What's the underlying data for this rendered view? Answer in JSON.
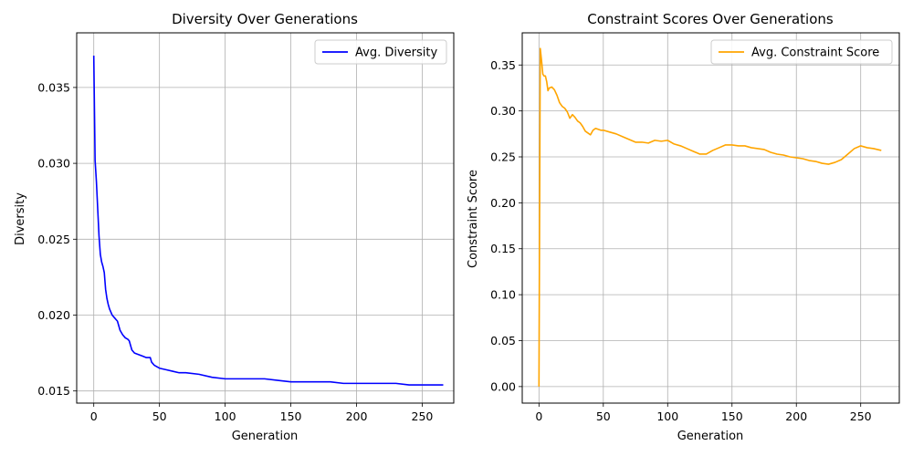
{
  "chart_data": [
    {
      "type": "line",
      "title": "Diversity Over Generations",
      "xlabel": "Generation",
      "ylabel": "Diversity",
      "xlim": [
        -13,
        274
      ],
      "ylim": [
        0.0142,
        0.0386
      ],
      "xticks": [
        0,
        50,
        100,
        150,
        200,
        250
      ],
      "yticks": [
        0.015,
        0.02,
        0.025,
        0.03,
        0.035
      ],
      "ytick_labels": [
        "0.015",
        "0.020",
        "0.025",
        "0.030",
        "0.035"
      ],
      "grid": true,
      "legend_position": "top-right",
      "series": [
        {
          "name": "Avg. Diversity",
          "color": "#0000ff",
          "x": [
            0,
            1,
            2,
            3,
            4,
            5,
            6,
            7,
            8,
            9,
            10,
            11,
            12,
            14,
            16,
            18,
            20,
            22,
            24,
            26,
            27,
            29,
            31,
            34,
            37,
            40,
            43,
            44,
            46,
            48,
            50,
            55,
            60,
            65,
            70,
            80,
            90,
            100,
            110,
            120,
            130,
            140,
            150,
            160,
            170,
            180,
            190,
            200,
            210,
            220,
            230,
            240,
            250,
            260,
            266
          ],
          "y": [
            0.0371,
            0.0302,
            0.0288,
            0.027,
            0.0252,
            0.024,
            0.0235,
            0.0232,
            0.0228,
            0.0217,
            0.0211,
            0.0207,
            0.0204,
            0.02,
            0.0198,
            0.0196,
            0.019,
            0.0187,
            0.0185,
            0.0184,
            0.0183,
            0.0177,
            0.0175,
            0.0174,
            0.0173,
            0.0172,
            0.0172,
            0.0169,
            0.0167,
            0.0166,
            0.0165,
            0.0164,
            0.0163,
            0.0162,
            0.0162,
            0.0161,
            0.0159,
            0.0158,
            0.0158,
            0.0158,
            0.0158,
            0.0157,
            0.0156,
            0.0156,
            0.0156,
            0.0156,
            0.0155,
            0.0155,
            0.0155,
            0.0155,
            0.0155,
            0.0154,
            0.0154,
            0.0154,
            0.0154
          ]
        }
      ]
    },
    {
      "type": "line",
      "title": "Constraint Scores Over Generations",
      "xlabel": "Generation",
      "ylabel": "Constraint Score",
      "xlim": [
        -13,
        280
      ],
      "ylim": [
        -0.018,
        0.385
      ],
      "xticks": [
        0,
        50,
        100,
        150,
        200,
        250
      ],
      "yticks": [
        0.0,
        0.05,
        0.1,
        0.15,
        0.2,
        0.25,
        0.3,
        0.35
      ],
      "ytick_labels": [
        "0.00",
        "0.05",
        "0.10",
        "0.15",
        "0.20",
        "0.25",
        "0.30",
        "0.35"
      ],
      "grid": true,
      "legend_position": "top-right",
      "series": [
        {
          "name": "Avg. Constraint Score",
          "color": "#ffa500",
          "x": [
            0,
            1,
            2,
            3,
            4,
            5,
            6,
            7,
            8,
            10,
            12,
            14,
            16,
            18,
            20,
            22,
            24,
            26,
            28,
            30,
            32,
            34,
            36,
            38,
            40,
            42,
            44,
            46,
            48,
            50,
            55,
            60,
            65,
            70,
            75,
            80,
            85,
            90,
            95,
            100,
            105,
            110,
            115,
            120,
            125,
            130,
            135,
            140,
            145,
            150,
            155,
            160,
            165,
            170,
            175,
            180,
            185,
            190,
            195,
            200,
            205,
            210,
            215,
            220,
            225,
            230,
            235,
            240,
            245,
            250,
            255,
            260,
            266
          ],
          "y": [
            0.0,
            0.368,
            0.355,
            0.34,
            0.338,
            0.338,
            0.332,
            0.322,
            0.325,
            0.326,
            0.323,
            0.317,
            0.309,
            0.305,
            0.303,
            0.299,
            0.292,
            0.296,
            0.293,
            0.289,
            0.287,
            0.283,
            0.278,
            0.276,
            0.274,
            0.279,
            0.281,
            0.28,
            0.279,
            0.279,
            0.277,
            0.275,
            0.272,
            0.269,
            0.266,
            0.266,
            0.265,
            0.268,
            0.267,
            0.268,
            0.264,
            0.262,
            0.259,
            0.256,
            0.253,
            0.253,
            0.257,
            0.26,
            0.263,
            0.263,
            0.262,
            0.262,
            0.26,
            0.259,
            0.258,
            0.255,
            0.253,
            0.252,
            0.25,
            0.249,
            0.248,
            0.246,
            0.245,
            0.243,
            0.242,
            0.244,
            0.247,
            0.253,
            0.259,
            0.262,
            0.26,
            0.259,
            0.257
          ]
        }
      ]
    }
  ]
}
